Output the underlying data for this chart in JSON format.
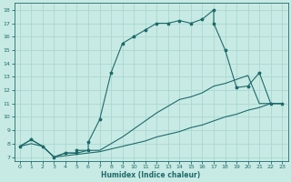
{
  "xlabel": "Humidex (Indice chaleur)",
  "xlim": [
    -0.5,
    23.5
  ],
  "ylim": [
    6.7,
    18.5
  ],
  "xticks": [
    0,
    1,
    2,
    3,
    4,
    5,
    6,
    7,
    8,
    9,
    10,
    11,
    12,
    13,
    14,
    15,
    16,
    17,
    18,
    19,
    20,
    21,
    22,
    23
  ],
  "yticks": [
    7,
    8,
    9,
    10,
    11,
    12,
    13,
    14,
    15,
    16,
    17,
    18
  ],
  "bg_color": "#c8eae4",
  "line_color": "#1e6b6b",
  "grid_color": "#aad8d0",
  "line1_x": [
    0,
    1,
    2,
    3,
    4,
    5,
    5,
    6,
    6,
    7,
    8,
    9,
    10,
    11,
    12,
    13,
    14,
    15,
    16,
    17,
    17,
    18,
    19,
    20,
    21,
    22,
    23
  ],
  "line1_y": [
    7.8,
    8.3,
    7.8,
    7.0,
    7.3,
    7.3,
    7.5,
    7.5,
    8.1,
    9.8,
    13.3,
    15.5,
    16.0,
    16.5,
    17.0,
    17.0,
    17.2,
    17.0,
    17.3,
    18.0,
    17.0,
    15.0,
    12.2,
    12.3,
    13.3,
    11.0,
    11.0
  ],
  "line2_x": [
    0,
    1,
    2,
    3,
    4,
    5,
    6,
    7,
    8,
    9,
    10,
    11,
    12,
    13,
    14,
    15,
    16,
    17,
    18,
    19,
    20,
    21,
    22,
    23
  ],
  "line2_y": [
    7.8,
    8.3,
    7.8,
    7.0,
    7.3,
    7.3,
    7.5,
    7.5,
    8.0,
    8.5,
    9.1,
    9.7,
    10.3,
    10.8,
    11.3,
    11.5,
    11.8,
    12.3,
    12.5,
    12.8,
    13.1,
    11.0,
    11.0,
    11.0
  ],
  "line3_x": [
    0,
    1,
    2,
    3,
    4,
    5,
    6,
    7,
    8,
    9,
    10,
    11,
    12,
    13,
    14,
    15,
    16,
    17,
    18,
    19,
    20,
    21,
    22,
    23
  ],
  "line3_y": [
    7.8,
    8.0,
    7.8,
    7.0,
    7.1,
    7.2,
    7.3,
    7.4,
    7.6,
    7.8,
    8.0,
    8.2,
    8.5,
    8.7,
    8.9,
    9.2,
    9.4,
    9.7,
    10.0,
    10.2,
    10.5,
    10.7,
    11.0,
    11.0
  ],
  "marker1_x": [
    0,
    1,
    2,
    3,
    4,
    5,
    6,
    7,
    8,
    9,
    10,
    11,
    12,
    13,
    14,
    15,
    16,
    17,
    18,
    19,
    20,
    21,
    22,
    23
  ],
  "marker1_y": [
    7.8,
    8.3,
    7.8,
    7.0,
    7.3,
    7.5,
    8.1,
    9.8,
    13.3,
    15.5,
    16.0,
    16.5,
    17.0,
    17.0,
    17.2,
    17.0,
    17.3,
    18.0,
    15.0,
    12.2,
    12.3,
    13.3,
    11.0,
    11.0
  ]
}
